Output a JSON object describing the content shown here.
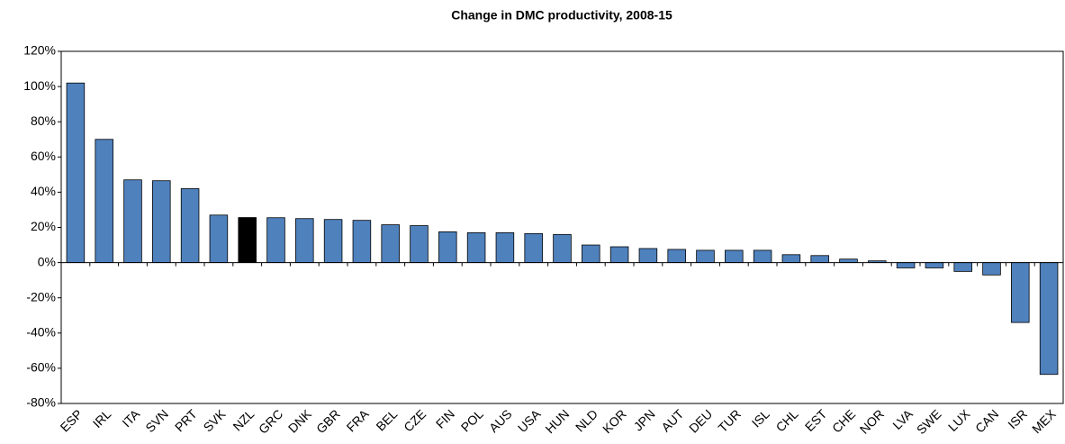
{
  "chart_data": {
    "type": "bar",
    "title": "Change in DMC productivity, 2008-15",
    "categories": [
      "ESP",
      "IRL",
      "ITA",
      "SVN",
      "PRT",
      "SVK",
      "NZL",
      "GRC",
      "DNK",
      "GBR",
      "FRA",
      "BEL",
      "CZE",
      "FIN",
      "POL",
      "AUS",
      "USA",
      "HUN",
      "NLD",
      "KOR",
      "JPN",
      "AUT",
      "DEU",
      "TUR",
      "ISL",
      "CHL",
      "EST",
      "CHE",
      "NOR",
      "LVA",
      "SWE",
      "LUX",
      "CAN",
      "ISR",
      "MEX"
    ],
    "values": [
      102,
      70,
      47,
      46.5,
      42,
      27,
      25.6,
      25.5,
      25,
      24.5,
      24,
      21.5,
      21,
      17.5,
      17,
      17,
      16.5,
      16,
      10,
      9,
      8,
      7.5,
      7,
      7,
      7,
      4.5,
      4,
      2,
      1,
      -3,
      -3,
      -5,
      -7,
      -34,
      -63.5
    ],
    "colors": [
      "#4f81bd",
      "#4f81bd",
      "#4f81bd",
      "#4f81bd",
      "#4f81bd",
      "#4f81bd",
      "#000000",
      "#4f81bd",
      "#4f81bd",
      "#4f81bd",
      "#4f81bd",
      "#4f81bd",
      "#4f81bd",
      "#4f81bd",
      "#4f81bd",
      "#4f81bd",
      "#4f81bd",
      "#4f81bd",
      "#4f81bd",
      "#4f81bd",
      "#4f81bd",
      "#4f81bd",
      "#4f81bd",
      "#4f81bd",
      "#4f81bd",
      "#4f81bd",
      "#4f81bd",
      "#4f81bd",
      "#4f81bd",
      "#4f81bd",
      "#4f81bd",
      "#4f81bd",
      "#4f81bd",
      "#4f81bd",
      "#4f81bd"
    ],
    "ylim": [
      -80,
      120
    ],
    "yticks": [
      {
        "value": -80,
        "label": "-80%"
      },
      {
        "value": -60,
        "label": "-60%"
      },
      {
        "value": -40,
        "label": "-40%"
      },
      {
        "value": -20,
        "label": "-20%"
      },
      {
        "value": 0,
        "label": "0%"
      },
      {
        "value": 20,
        "label": "20%"
      },
      {
        "value": 40,
        "label": "40%"
      },
      {
        "value": 60,
        "label": "60%"
      },
      {
        "value": 80,
        "label": "80%"
      },
      {
        "value": 100,
        "label": "100%"
      },
      {
        "value": 120,
        "label": "120%"
      }
    ],
    "grid": false
  }
}
